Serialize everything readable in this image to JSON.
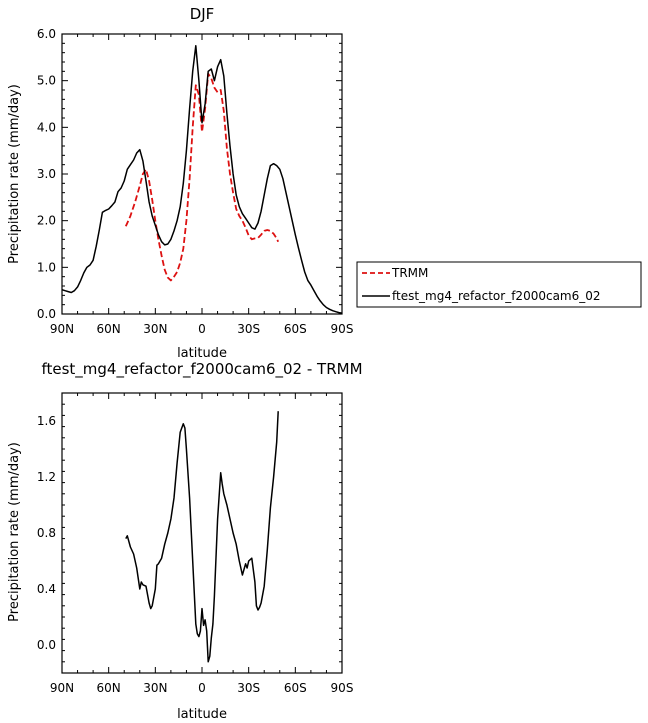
{
  "chart_data": [
    {
      "type": "line",
      "title": "DJF",
      "xlabel": "latitude",
      "ylabel": "Precipitation rate (mm/day)",
      "xlim": [
        -90,
        90
      ],
      "ylim": [
        0.0,
        6.0
      ],
      "x_tick_values": [
        -90,
        -60,
        -30,
        0,
        30,
        60,
        90
      ],
      "x_tick_labels": [
        "90N",
        "60N",
        "30N",
        "0",
        "30S",
        "60S",
        "90S"
      ],
      "y_tick_values": [
        0,
        1,
        2,
        3,
        4,
        5,
        6
      ],
      "y_tick_labels": [
        "0.0",
        "1.0",
        "2.0",
        "3.0",
        "4.0",
        "5.0",
        "6.0"
      ],
      "legend_position": "right-outside",
      "series": [
        {
          "name": "TRMM",
          "color": "#dd1111",
          "dash": "dashed",
          "x": [
            -49,
            -46,
            -43,
            -40,
            -38,
            -36,
            -34,
            -32,
            -30,
            -28,
            -26,
            -24,
            -22,
            -20,
            -18,
            -16,
            -14,
            -12,
            -10,
            -8,
            -6,
            -4,
            -2,
            0,
            2,
            4,
            6,
            8,
            10,
            12,
            14,
            16,
            18,
            20,
            22,
            24,
            26,
            28,
            30,
            32,
            34,
            36,
            38,
            40,
            42,
            44,
            46,
            48,
            49
          ],
          "y": [
            1.88,
            2.1,
            2.4,
            2.75,
            3.0,
            3.1,
            2.85,
            2.45,
            2.0,
            1.6,
            1.25,
            0.95,
            0.78,
            0.72,
            0.8,
            0.9,
            1.1,
            1.4,
            2.0,
            2.9,
            4.0,
            4.9,
            4.7,
            3.9,
            4.4,
            5.15,
            5.05,
            4.85,
            4.75,
            4.8,
            4.35,
            3.55,
            3.0,
            2.6,
            2.25,
            2.1,
            2.0,
            1.85,
            1.68,
            1.6,
            1.62,
            1.63,
            1.7,
            1.78,
            1.8,
            1.78,
            1.72,
            1.62,
            1.55
          ]
        },
        {
          "name": "ftest_mg4_refactor_f2000cam6_02",
          "color": "#000000",
          "dash": "solid",
          "x": [
            -90,
            -88,
            -86,
            -84,
            -82,
            -80,
            -78,
            -76,
            -74,
            -72,
            -70,
            -68,
            -66,
            -64,
            -62,
            -60,
            -58,
            -56,
            -54,
            -52,
            -50,
            -48,
            -46,
            -44,
            -42,
            -40,
            -38,
            -36,
            -34,
            -32,
            -30,
            -28,
            -26,
            -24,
            -22,
            -20,
            -18,
            -16,
            -14,
            -12,
            -10,
            -8,
            -6,
            -4,
            -2,
            0,
            2,
            4,
            6,
            8,
            10,
            12,
            14,
            16,
            18,
            20,
            22,
            24,
            26,
            28,
            30,
            32,
            34,
            36,
            38,
            40,
            42,
            44,
            46,
            48,
            50,
            52,
            54,
            56,
            58,
            60,
            62,
            64,
            66,
            68,
            70,
            72,
            74,
            76,
            78,
            80,
            82,
            84,
            86,
            88,
            90
          ],
          "y": [
            0.52,
            0.5,
            0.48,
            0.46,
            0.5,
            0.58,
            0.72,
            0.88,
            1.0,
            1.05,
            1.15,
            1.45,
            1.8,
            2.18,
            2.22,
            2.25,
            2.32,
            2.4,
            2.62,
            2.7,
            2.85,
            3.1,
            3.2,
            3.3,
            3.45,
            3.52,
            3.28,
            2.85,
            2.4,
            2.1,
            1.9,
            1.7,
            1.55,
            1.48,
            1.5,
            1.6,
            1.78,
            2.0,
            2.3,
            2.8,
            3.5,
            4.4,
            5.2,
            5.75,
            5.0,
            4.1,
            4.5,
            5.2,
            5.25,
            5.0,
            5.3,
            5.45,
            5.1,
            4.3,
            3.6,
            3.0,
            2.55,
            2.3,
            2.15,
            2.05,
            1.95,
            1.85,
            1.82,
            1.95,
            2.2,
            2.55,
            2.9,
            3.18,
            3.22,
            3.18,
            3.1,
            2.9,
            2.6,
            2.3,
            2.0,
            1.7,
            1.42,
            1.15,
            0.9,
            0.72,
            0.62,
            0.5,
            0.38,
            0.28,
            0.2,
            0.14,
            0.1,
            0.07,
            0.05,
            0.03,
            0.02
          ]
        }
      ]
    },
    {
      "type": "line",
      "title": "ftest_mg4_refactor_f2000cam6_02 - TRMM",
      "xlabel": "latitude",
      "ylabel": "Precipitation rate (mm/day)",
      "xlim": [
        -90,
        90
      ],
      "ylim": [
        -0.2,
        1.8
      ],
      "x_tick_values": [
        -90,
        -60,
        -30,
        0,
        30,
        60,
        90
      ],
      "x_tick_labels": [
        "90N",
        "60N",
        "30N",
        "0",
        "30S",
        "60S",
        "90S"
      ],
      "y_tick_values": [
        0.0,
        0.4,
        0.8,
        1.2,
        1.6
      ],
      "y_tick_labels": [
        "0.0",
        "0.4",
        "0.8",
        "1.2",
        "1.6"
      ],
      "series": [
        {
          "color": "#000000",
          "dash": "solid",
          "x": [
            -49,
            -48,
            -46,
            -44,
            -42,
            -40,
            -39,
            -38,
            -36,
            -34,
            -33,
            -32,
            -30,
            -29,
            -28,
            -26,
            -24,
            -22,
            -20,
            -18,
            -16,
            -14,
            -12,
            -11,
            -10,
            -8,
            -6,
            -4,
            -3,
            -2,
            -1,
            0,
            1,
            2,
            3,
            4,
            5,
            6,
            7,
            8,
            10,
            12,
            13,
            14,
            16,
            18,
            20,
            22,
            24,
            26,
            28,
            29,
            30,
            32,
            34,
            35,
            36,
            37,
            38,
            40,
            42,
            44,
            46,
            48,
            49
          ],
          "y": [
            0.76,
            0.78,
            0.7,
            0.65,
            0.55,
            0.4,
            0.45,
            0.43,
            0.42,
            0.3,
            0.26,
            0.28,
            0.4,
            0.57,
            0.58,
            0.62,
            0.72,
            0.8,
            0.9,
            1.05,
            1.3,
            1.52,
            1.58,
            1.55,
            1.4,
            1.05,
            0.6,
            0.15,
            0.08,
            0.06,
            0.1,
            0.26,
            0.14,
            0.18,
            0.1,
            -0.12,
            -0.08,
            0.05,
            0.15,
            0.35,
            0.9,
            1.23,
            1.15,
            1.08,
            1.0,
            0.9,
            0.8,
            0.72,
            0.6,
            0.5,
            0.58,
            0.55,
            0.6,
            0.62,
            0.45,
            0.28,
            0.25,
            0.27,
            0.3,
            0.42,
            0.68,
            0.98,
            1.2,
            1.45,
            1.67
          ]
        }
      ]
    }
  ]
}
